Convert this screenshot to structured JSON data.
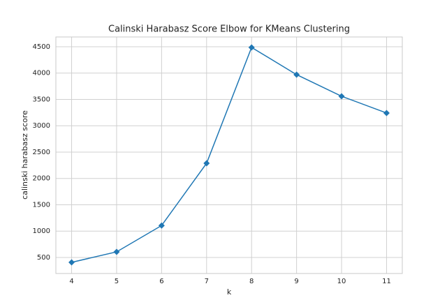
{
  "chart_data": {
    "type": "line",
    "title": "Calinski Harabasz Score Elbow for KMeans Clustering",
    "xlabel": "k",
    "ylabel": "calinski harabasz score",
    "x": [
      4,
      5,
      6,
      7,
      8,
      9,
      10,
      11
    ],
    "series": [
      {
        "name": "calinski harabasz score",
        "color": "#1f77b4",
        "values": [
          407,
          606,
          1106,
          2288,
          4487,
          3970,
          3560,
          3242
        ]
      }
    ],
    "xlim": [
      3.65,
      11.35
    ],
    "ylim": [
      195,
      4685
    ],
    "xticks": [
      4,
      5,
      6,
      7,
      8,
      9,
      10,
      11
    ],
    "yticks": [
      500,
      1000,
      1500,
      2000,
      2500,
      3000,
      3500,
      4000,
      4500
    ],
    "grid": true,
    "marker": "diamond"
  }
}
